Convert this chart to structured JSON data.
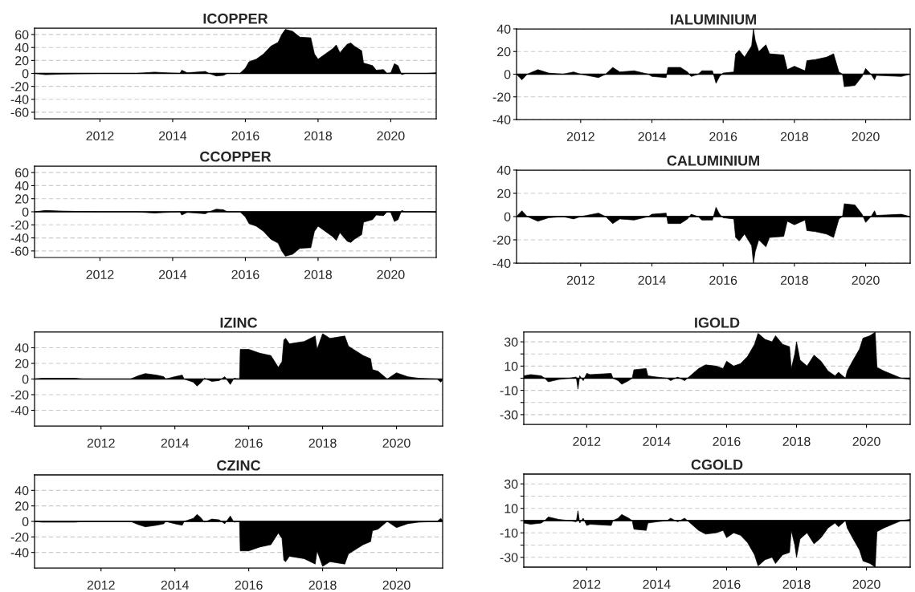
{
  "chart_data": [
    {
      "type": "area",
      "title": "ICOPPER",
      "color": "#000000",
      "xlim": [
        2010.2,
        2021.25
      ],
      "xticks": [
        2012,
        2014,
        2016,
        2018,
        2020
      ],
      "ylim": [
        -70,
        70
      ],
      "yticks": [
        60,
        40,
        20,
        0,
        -20,
        -40,
        -60
      ],
      "grid": "y",
      "x": [
        2010.2,
        2010.5,
        2011.0,
        2012.0,
        2013.0,
        2013.5,
        2013.8,
        2014.2,
        2014.25,
        2014.4,
        2014.9,
        2015.0,
        2015.2,
        2015.4,
        2015.5,
        2015.85,
        2016.0,
        2016.1,
        2016.3,
        2016.5,
        2016.7,
        2016.9,
        2017.0,
        2017.1,
        2017.3,
        2017.5,
        2017.8,
        2017.9,
        2018.0,
        2018.2,
        2018.4,
        2018.5,
        2018.6,
        2018.8,
        2018.9,
        2019.0,
        2019.2,
        2019.25,
        2019.5,
        2019.6,
        2019.8,
        2019.9,
        2020.0,
        2020.1,
        2020.2,
        2020.3,
        2020.4,
        2021.0,
        2021.25
      ],
      "values": [
        0,
        -2,
        -1,
        0,
        0,
        2,
        1,
        0,
        5,
        1,
        3,
        0,
        -4,
        -3,
        0,
        0,
        8,
        18,
        22,
        30,
        42,
        48,
        60,
        68,
        65,
        56,
        55,
        30,
        22,
        30,
        38,
        44,
        32,
        45,
        47,
        42,
        35,
        16,
        12,
        5,
        6,
        0,
        1,
        15,
        12,
        -2,
        0,
        0,
        1
      ]
    },
    {
      "type": "area",
      "title": "IALUMINIUM",
      "color": "#000000",
      "xlim": [
        2010.2,
        2021.25
      ],
      "xticks": [
        2012,
        2014,
        2016,
        2018,
        2020
      ],
      "ylim": [
        -40,
        40
      ],
      "yticks": [
        40,
        20,
        0,
        -20,
        -40
      ],
      "grid": "y",
      "x": [
        2010.2,
        2010.35,
        2010.5,
        2010.8,
        2011.1,
        2011.5,
        2011.8,
        2012.0,
        2012.5,
        2012.7,
        2012.9,
        2013.1,
        2013.5,
        2013.9,
        2014.0,
        2014.4,
        2014.45,
        2014.8,
        2015.0,
        2015.1,
        2015.3,
        2015.4,
        2015.7,
        2015.8,
        2015.9,
        2016.0,
        2016.3,
        2016.35,
        2016.45,
        2016.6,
        2016.8,
        2016.85,
        2016.9,
        2017.0,
        2017.2,
        2017.3,
        2017.7,
        2017.8,
        2018.0,
        2018.3,
        2018.35,
        2018.6,
        2018.9,
        2019.1,
        2019.25,
        2019.35,
        2019.4,
        2019.7,
        2019.9,
        2020.0,
        2020.15,
        2020.25,
        2020.3,
        2021.0,
        2021.25
      ],
      "values": [
        0,
        -5,
        0,
        4,
        1,
        0,
        2,
        0,
        -3,
        0,
        6,
        2,
        3,
        0,
        -2,
        -3,
        6,
        6,
        2,
        -2,
        0,
        3,
        3,
        -8,
        -2,
        1,
        2,
        18,
        21,
        15,
        25,
        40,
        30,
        20,
        26,
        18,
        17,
        4,
        7,
        3,
        12,
        13,
        15,
        18,
        2,
        0,
        -11,
        -10,
        -2,
        5,
        0,
        -5,
        -1,
        -2,
        0
      ]
    },
    {
      "type": "area",
      "title": "CCOPPER",
      "color": "#000000",
      "xlim": [
        2010.2,
        2021.25
      ],
      "xticks": [
        2012,
        2014,
        2016,
        2018,
        2020
      ],
      "ylim": [
        -70,
        70
      ],
      "yticks": [
        60,
        40,
        20,
        0,
        -20,
        -40,
        -60
      ],
      "grid": "y",
      "x": [
        2010.2,
        2010.5,
        2011.0,
        2012.0,
        2013.0,
        2013.5,
        2013.8,
        2014.2,
        2014.25,
        2014.4,
        2014.9,
        2015.0,
        2015.2,
        2015.4,
        2015.5,
        2015.85,
        2016.0,
        2016.1,
        2016.3,
        2016.5,
        2016.7,
        2016.9,
        2017.0,
        2017.1,
        2017.3,
        2017.5,
        2017.8,
        2017.9,
        2018.0,
        2018.2,
        2018.4,
        2018.5,
        2018.6,
        2018.8,
        2018.9,
        2019.0,
        2019.2,
        2019.25,
        2019.5,
        2019.6,
        2019.8,
        2019.9,
        2020.0,
        2020.1,
        2020.2,
        2020.3,
        2020.4,
        2021.0,
        2021.25
      ],
      "values": [
        0,
        2,
        1,
        0,
        0,
        -2,
        -1,
        0,
        -5,
        -1,
        -3,
        0,
        4,
        3,
        0,
        0,
        -8,
        -18,
        -22,
        -30,
        -42,
        -48,
        -60,
        -68,
        -65,
        -56,
        -55,
        -30,
        -22,
        -30,
        -38,
        -44,
        -32,
        -45,
        -47,
        -42,
        -35,
        -16,
        -12,
        -5,
        -6,
        0,
        -1,
        -15,
        -12,
        2,
        0,
        0,
        -1
      ]
    },
    {
      "type": "area",
      "title": "CALUMINIUM",
      "color": "#000000",
      "xlim": [
        2010.2,
        2021.25
      ],
      "xticks": [
        2012,
        2014,
        2016,
        2018,
        2020
      ],
      "ylim": [
        -40,
        40
      ],
      "yticks": [
        40,
        20,
        0,
        -20,
        -40
      ],
      "grid": "y",
      "x": [
        2010.2,
        2010.35,
        2010.5,
        2010.8,
        2011.1,
        2011.5,
        2011.8,
        2012.0,
        2012.5,
        2012.7,
        2012.9,
        2013.1,
        2013.5,
        2013.9,
        2014.0,
        2014.4,
        2014.45,
        2014.8,
        2015.0,
        2015.1,
        2015.3,
        2015.4,
        2015.7,
        2015.8,
        2015.9,
        2016.0,
        2016.3,
        2016.35,
        2016.45,
        2016.6,
        2016.8,
        2016.85,
        2016.9,
        2017.0,
        2017.2,
        2017.3,
        2017.7,
        2017.8,
        2018.0,
        2018.3,
        2018.35,
        2018.6,
        2018.9,
        2019.1,
        2019.25,
        2019.35,
        2019.4,
        2019.7,
        2019.9,
        2020.0,
        2020.15,
        2020.25,
        2020.3,
        2021.0,
        2021.25
      ],
      "values": [
        0,
        5,
        0,
        -4,
        -1,
        0,
        -2,
        0,
        3,
        0,
        -6,
        -2,
        -3,
        0,
        2,
        3,
        -6,
        -6,
        -2,
        2,
        0,
        -3,
        -3,
        8,
        2,
        -1,
        -2,
        -18,
        -21,
        -15,
        -25,
        -40,
        -30,
        -20,
        -26,
        -18,
        -17,
        -4,
        -7,
        -3,
        -12,
        -13,
        -15,
        -18,
        -2,
        0,
        11,
        10,
        2,
        -5,
        0,
        5,
        1,
        2,
        0
      ]
    },
    {
      "type": "area",
      "title": "IZINC",
      "color": "#000000",
      "xlim": [
        2010.2,
        2021.25
      ],
      "xticks": [
        2012,
        2014,
        2016,
        2018,
        2020
      ],
      "ylim": [
        -60,
        60
      ],
      "yticks": [
        40,
        20,
        0,
        -20,
        -40
      ],
      "grid": "y",
      "x": [
        2010.2,
        2010.4,
        2011.3,
        2011.5,
        2012.8,
        2013.0,
        2013.2,
        2013.5,
        2013.7,
        2013.75,
        2014.0,
        2014.2,
        2014.25,
        2014.5,
        2014.6,
        2014.7,
        2014.8,
        2015.0,
        2015.2,
        2015.35,
        2015.5,
        2015.6,
        2015.75,
        2015.77,
        2016.0,
        2016.3,
        2016.6,
        2016.8,
        2016.9,
        2016.95,
        2017.0,
        2017.1,
        2017.5,
        2017.8,
        2017.85,
        2018.0,
        2018.2,
        2018.6,
        2018.7,
        2018.9,
        2019.1,
        2019.3,
        2019.35,
        2019.5,
        2019.75,
        2020.0,
        2020.3,
        2020.6,
        2021.1,
        2021.2,
        2021.25
      ],
      "values": [
        0,
        1,
        1,
        0,
        0,
        4,
        7,
        5,
        3,
        0,
        3,
        5,
        0,
        -4,
        -9,
        -5,
        1,
        -3,
        -2,
        3,
        -7,
        1,
        0,
        38,
        38,
        33,
        30,
        15,
        22,
        50,
        52,
        45,
        48,
        55,
        38,
        58,
        52,
        55,
        42,
        36,
        30,
        26,
        12,
        10,
        0,
        8,
        3,
        1,
        0,
        -4,
        -1
      ]
    },
    {
      "type": "area",
      "title": "IGOLD",
      "color": "#000000",
      "xlim": [
        2010.2,
        2021.25
      ],
      "xticks": [
        2012,
        2014,
        2016,
        2018,
        2020
      ],
      "ylim": [
        -38,
        38
      ],
      "yticks": [
        30,
        {
          "value": 20,
          "label": null
        },
        10,
        {
          "value": 0,
          "label": null
        },
        -10,
        {
          "value": -20,
          "label": null
        },
        -30
      ],
      "grid": "y",
      "x": [
        2010.2,
        2010.4,
        2010.7,
        2010.8,
        2010.9,
        2011.2,
        2011.5,
        2011.7,
        2011.75,
        2011.8,
        2011.9,
        2012.0,
        2012.1,
        2012.7,
        2012.75,
        2012.9,
        2013.0,
        2013.2,
        2013.3,
        2013.35,
        2013.7,
        2013.75,
        2014.0,
        2014.3,
        2014.4,
        2014.6,
        2014.8,
        2015.0,
        2015.2,
        2015.4,
        2015.7,
        2015.9,
        2016.0,
        2016.2,
        2016.4,
        2016.6,
        2016.8,
        2016.9,
        2017.1,
        2017.3,
        2017.4,
        2017.6,
        2017.8,
        2017.85,
        2017.95,
        2018.0,
        2018.1,
        2018.3,
        2018.5,
        2018.7,
        2018.9,
        2019.1,
        2019.2,
        2019.4,
        2019.45,
        2019.6,
        2019.8,
        2019.9,
        2020.1,
        2020.25,
        2020.3,
        2020.5,
        2020.75,
        2021.0,
        2021.25
      ],
      "values": [
        2,
        3,
        2,
        0,
        -3,
        -1,
        0,
        1,
        -9,
        2,
        -2,
        4,
        3,
        4,
        0,
        -2,
        -5,
        -2,
        0,
        7,
        8,
        2,
        1,
        0,
        -2,
        1,
        -2,
        3,
        8,
        11,
        10,
        8,
        14,
        10,
        12,
        18,
        28,
        37,
        32,
        30,
        35,
        28,
        26,
        8,
        20,
        30,
        15,
        10,
        19,
        14,
        6,
        2,
        5,
        0,
        6,
        14,
        24,
        33,
        35,
        38,
        9,
        6,
        3,
        0,
        -1
      ]
    },
    {
      "type": "area",
      "title": "CZINC",
      "color": "#000000",
      "xlim": [
        2010.2,
        2021.25
      ],
      "xticks": [
        2012,
        2014,
        2016,
        2018,
        2020
      ],
      "ylim": [
        -60,
        60
      ],
      "yticks": [
        40,
        20,
        0,
        -20,
        -40
      ],
      "grid": "y",
      "x": [
        2010.2,
        2010.4,
        2011.3,
        2011.5,
        2012.8,
        2013.0,
        2013.2,
        2013.5,
        2013.7,
        2013.75,
        2014.0,
        2014.2,
        2014.25,
        2014.5,
        2014.6,
        2014.7,
        2014.8,
        2015.0,
        2015.2,
        2015.35,
        2015.5,
        2015.6,
        2015.75,
        2015.77,
        2016.0,
        2016.3,
        2016.6,
        2016.8,
        2016.9,
        2016.95,
        2017.0,
        2017.1,
        2017.5,
        2017.8,
        2017.85,
        2018.0,
        2018.2,
        2018.6,
        2018.7,
        2018.9,
        2019.1,
        2019.3,
        2019.35,
        2019.5,
        2019.75,
        2020.0,
        2020.3,
        2020.6,
        2021.1,
        2021.2,
        2021.25
      ],
      "values": [
        0,
        -1,
        -1,
        0,
        0,
        -4,
        -7,
        -5,
        -3,
        0,
        -3,
        -5,
        0,
        4,
        9,
        5,
        -1,
        3,
        2,
        -3,
        7,
        -1,
        0,
        -38,
        -38,
        -33,
        -30,
        -15,
        -22,
        -50,
        -52,
        -45,
        -48,
        -55,
        -38,
        -58,
        -52,
        -55,
        -42,
        -36,
        -30,
        -26,
        -12,
        -10,
        0,
        -8,
        -3,
        -1,
        0,
        4,
        1
      ]
    },
    {
      "type": "area",
      "title": "CGOLD",
      "color": "#000000",
      "xlim": [
        2010.2,
        2021.25
      ],
      "xticks": [
        2012,
        2014,
        2016,
        2018,
        2020
      ],
      "ylim": [
        -38,
        38
      ],
      "yticks": [
        30,
        {
          "value": 20,
          "label": null
        },
        10,
        {
          "value": 0,
          "label": null
        },
        -10,
        {
          "value": -20,
          "label": null
        },
        -30
      ],
      "grid": "y",
      "x": [
        2010.2,
        2010.4,
        2010.7,
        2010.8,
        2010.9,
        2011.2,
        2011.5,
        2011.7,
        2011.75,
        2011.8,
        2011.9,
        2012.0,
        2012.1,
        2012.7,
        2012.75,
        2012.9,
        2013.0,
        2013.2,
        2013.3,
        2013.35,
        2013.7,
        2013.75,
        2014.0,
        2014.3,
        2014.4,
        2014.6,
        2014.8,
        2015.0,
        2015.2,
        2015.4,
        2015.7,
        2015.9,
        2016.0,
        2016.2,
        2016.4,
        2016.6,
        2016.8,
        2016.9,
        2017.1,
        2017.3,
        2017.4,
        2017.6,
        2017.8,
        2017.85,
        2017.95,
        2018.0,
        2018.1,
        2018.3,
        2018.5,
        2018.7,
        2018.9,
        2019.1,
        2019.2,
        2019.4,
        2019.45,
        2019.6,
        2019.8,
        2019.9,
        2020.1,
        2020.25,
        2020.3,
        2020.5,
        2020.75,
        2021.0,
        2021.25
      ],
      "values": [
        -2,
        -3,
        -2,
        0,
        3,
        1,
        0,
        -1,
        8,
        -2,
        2,
        -4,
        -3,
        -4,
        0,
        2,
        5,
        2,
        0,
        -7,
        -8,
        -2,
        -1,
        0,
        2,
        -1,
        2,
        -3,
        -8,
        -11,
        -10,
        -8,
        -14,
        -10,
        -12,
        -18,
        -28,
        -37,
        -32,
        -30,
        -35,
        -28,
        -26,
        -8,
        -20,
        -30,
        -15,
        -10,
        -19,
        -14,
        -6,
        -2,
        -5,
        0,
        -6,
        -14,
        -24,
        -33,
        -35,
        -38,
        -9,
        -6,
        -3,
        0,
        1
      ]
    }
  ]
}
